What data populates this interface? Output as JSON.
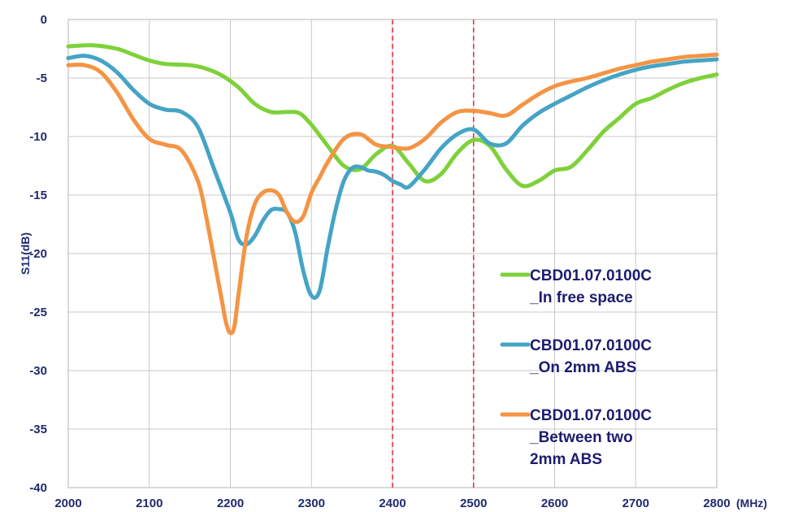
{
  "chart_data": {
    "type": "line",
    "title": "",
    "xlabel": "",
    "x_unit": "(MHz)",
    "ylabel": "S11(dB)",
    "xlim": [
      2000,
      2800
    ],
    "ylim": [
      -40,
      0
    ],
    "x_ticks": [
      "2000",
      "2100",
      "2200",
      "2300",
      "2400",
      "2500",
      "2600",
      "2700",
      "2800"
    ],
    "y_ticks": [
      "0",
      "-5",
      "-10",
      "-15",
      "-20",
      "-25",
      "-30",
      "-35",
      "-40"
    ],
    "grid": true,
    "legend_position": "bottom-right",
    "reference_lines": [
      {
        "x": 2400,
        "style": "dashed",
        "color": "#e8313a"
      },
      {
        "x": 2500,
        "style": "dashed",
        "color": "#e8313a"
      }
    ],
    "series": [
      {
        "name_lines": [
          "CBD01.07.0100C",
          "_In free space"
        ],
        "color": "#7ed13a",
        "x": [
          2000,
          2030,
          2060,
          2080,
          2100,
          2120,
          2150,
          2170,
          2190,
          2210,
          2230,
          2250,
          2270,
          2285,
          2300,
          2320,
          2340,
          2360,
          2380,
          2400,
          2420,
          2440,
          2460,
          2480,
          2500,
          2520,
          2540,
          2560,
          2580,
          2600,
          2620,
          2640,
          2660,
          2680,
          2700,
          2720,
          2740,
          2760,
          2780,
          2800
        ],
        "y": [
          -2.3,
          -2.2,
          -2.5,
          -3.0,
          -3.5,
          -3.8,
          -3.9,
          -4.2,
          -4.8,
          -5.8,
          -7.2,
          -7.9,
          -7.9,
          -8.0,
          -9.0,
          -10.8,
          -12.5,
          -12.8,
          -11.5,
          -10.8,
          -12.3,
          -13.8,
          -13.2,
          -11.4,
          -10.3,
          -10.8,
          -12.8,
          -14.2,
          -13.8,
          -12.9,
          -12.6,
          -11.2,
          -9.6,
          -8.4,
          -7.2,
          -6.7,
          -6.0,
          -5.4,
          -5.0,
          -4.7
        ]
      },
      {
        "name_lines": [
          "CBD01.07.0100C",
          "_On 2mm ABS"
        ],
        "color": "#45a4c6",
        "x": [
          2000,
          2020,
          2040,
          2060,
          2080,
          2100,
          2120,
          2140,
          2160,
          2180,
          2200,
          2210,
          2220,
          2230,
          2240,
          2250,
          2260,
          2270,
          2280,
          2290,
          2300,
          2310,
          2320,
          2330,
          2340,
          2350,
          2360,
          2370,
          2380,
          2390,
          2400,
          2410,
          2420,
          2440,
          2460,
          2480,
          2500,
          2520,
          2540,
          2560,
          2580,
          2600,
          2620,
          2640,
          2660,
          2680,
          2700,
          2720,
          2740,
          2760,
          2780,
          2800
        ],
        "y": [
          -3.3,
          -3.1,
          -3.5,
          -4.5,
          -6.0,
          -7.2,
          -7.7,
          -7.9,
          -9.2,
          -12.8,
          -16.5,
          -18.8,
          -19.2,
          -18.5,
          -17.2,
          -16.3,
          -16.2,
          -16.5,
          -18.2,
          -21.5,
          -23.6,
          -23.2,
          -19.5,
          -16.2,
          -13.8,
          -12.7,
          -12.6,
          -12.9,
          -13.0,
          -13.3,
          -13.8,
          -14.1,
          -14.3,
          -12.8,
          -11.0,
          -9.8,
          -9.4,
          -10.6,
          -10.6,
          -9.1,
          -8.0,
          -7.2,
          -6.5,
          -5.8,
          -5.2,
          -4.7,
          -4.3,
          -4.0,
          -3.8,
          -3.6,
          -3.5,
          -3.4
        ]
      },
      {
        "name_lines": [
          "CBD01.07.0100C",
          "_Between two",
          "2mm ABS"
        ],
        "color": "#f49444",
        "x": [
          2000,
          2020,
          2040,
          2060,
          2080,
          2100,
          2120,
          2140,
          2160,
          2170,
          2180,
          2190,
          2195,
          2200,
          2205,
          2210,
          2220,
          2230,
          2240,
          2250,
          2260,
          2270,
          2280,
          2290,
          2300,
          2310,
          2320,
          2340,
          2360,
          2380,
          2400,
          2420,
          2440,
          2460,
          2480,
          2500,
          2520,
          2540,
          2560,
          2580,
          2600,
          2620,
          2640,
          2660,
          2680,
          2700,
          2720,
          2740,
          2760,
          2780,
          2800
        ],
        "y": [
          -3.9,
          -3.9,
          -4.5,
          -6.2,
          -8.5,
          -10.2,
          -10.7,
          -11.2,
          -13.8,
          -16.8,
          -20.5,
          -24.2,
          -26.0,
          -26.8,
          -26.2,
          -23.5,
          -18.5,
          -15.8,
          -14.8,
          -14.6,
          -15.0,
          -16.5,
          -17.3,
          -16.8,
          -14.8,
          -13.5,
          -12.2,
          -10.2,
          -9.8,
          -10.7,
          -10.9,
          -11.0,
          -10.2,
          -8.8,
          -7.9,
          -7.8,
          -8.0,
          -8.2,
          -7.3,
          -6.4,
          -5.7,
          -5.3,
          -5.0,
          -4.6,
          -4.2,
          -3.9,
          -3.6,
          -3.4,
          -3.2,
          -3.1,
          -3.0
        ]
      }
    ]
  }
}
